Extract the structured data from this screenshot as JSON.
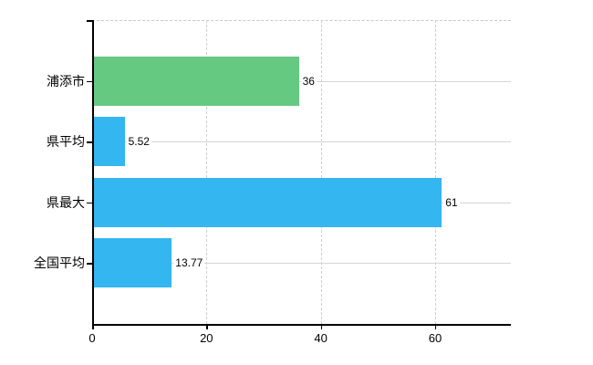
{
  "chart_data": {
    "type": "bar",
    "orientation": "horizontal",
    "title": "",
    "categories": [
      "浦添市",
      "県平均",
      "県最大",
      "全国平均"
    ],
    "values": [
      36,
      5.52,
      61,
      13.77
    ],
    "value_labels": [
      "36",
      "5.52",
      "61",
      "13.77"
    ],
    "bar_colors": [
      "#66c982",
      "#34b6f0",
      "#34b6f0",
      "#34b6f0"
    ],
    "xticks": [
      0,
      20,
      40,
      60
    ],
    "xtick_labels": [
      "0",
      "20",
      "40",
      "60"
    ],
    "xlim": [
      0,
      73.25
    ],
    "xlabel": "",
    "ylabel": "",
    "legend": "none",
    "grid": {
      "vertical_style": "dashed",
      "horizontal_style": "solid",
      "top_border_style": "dashed",
      "color": "#cfcfcf"
    },
    "axis_color": "#000000",
    "background_color": "#ffffff",
    "value_label_color": "#000000"
  }
}
